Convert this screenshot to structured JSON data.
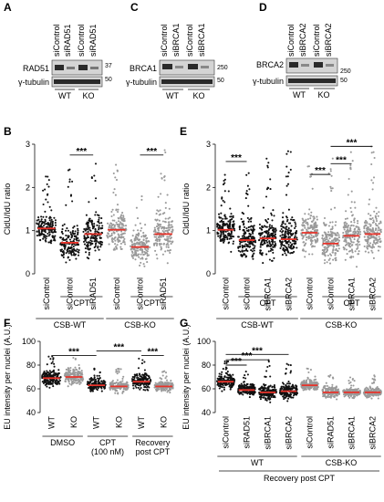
{
  "colors": {
    "dark_dot": "#111111",
    "light_dot": "#9a9a9a",
    "median": "#e8332a",
    "blot_bg": "#d4d4d4",
    "band": "#2a2a2a"
  },
  "panel_A": {
    "letter": "A",
    "lanes": [
      "siControl",
      "siRAD51",
      "siControl",
      "siRAD51"
    ],
    "protein": "RAD51",
    "loading": "γ-tubulin",
    "mw_top": "37",
    "mw_bottom": "50",
    "groups": [
      "WT",
      "KO"
    ]
  },
  "panel_C": {
    "letter": "C",
    "lanes": [
      "siControl",
      "siBRCA1",
      "siControl",
      "siBRCA1"
    ],
    "protein": "BRCA1",
    "loading": "γ-tubulin",
    "mw_top": "250",
    "mw_bottom": "50",
    "groups": [
      "WT",
      "KO"
    ]
  },
  "panel_D": {
    "letter": "D",
    "lanes": [
      "siControl",
      "siBRCA2",
      "siControl",
      "siBRCA2"
    ],
    "protein": "BRCA2",
    "loading": "γ-tubulin",
    "mw_top": "250",
    "mw_bottom": "50",
    "groups": [
      "WT",
      "KO"
    ]
  },
  "chart_data": [
    {
      "panel": "B",
      "type": "scatter",
      "ylabel": "CldU/IdU ratio",
      "ylim": [
        0,
        3
      ],
      "yticks": [
        "0",
        "1",
        "2",
        "3"
      ],
      "categories": [
        "siControl",
        "siControl",
        "siRAD51",
        "siControl",
        "siControl",
        "siRAD51"
      ],
      "medians": [
        1.05,
        0.72,
        0.92,
        1.02,
        0.62,
        0.92
      ],
      "spread_max": [
        2.3,
        2.5,
        2.8,
        2.6,
        2.2,
        3.0
      ],
      "dot_colors": [
        "dark",
        "dark",
        "dark",
        "light",
        "light",
        "light"
      ],
      "sig": [
        {
          "from": 1,
          "to": 2,
          "label": "***"
        },
        {
          "from": 4,
          "to": 5,
          "label": "***"
        }
      ],
      "treatment_labels": [
        {
          "text": "CPT",
          "span": [
            1,
            2
          ]
        },
        {
          "text": "CPT",
          "span": [
            4,
            5
          ]
        }
      ],
      "group_labels": [
        {
          "text": "CSB-WT",
          "span": [
            0,
            2
          ]
        },
        {
          "text": "CSB-KO",
          "span": [
            3,
            5
          ]
        }
      ]
    },
    {
      "panel": "E",
      "type": "scatter",
      "ylabel": "CldU/IdU ratio",
      "ylim": [
        0,
        3
      ],
      "yticks": [
        "0",
        "1",
        "2",
        "3"
      ],
      "categories": [
        "siControl",
        "siControl",
        "siBRCA1",
        "siBRCA2",
        "siControl",
        "siControl",
        "siBRCA1",
        "siBRCA2"
      ],
      "medians": [
        1.02,
        0.78,
        0.82,
        0.8,
        0.95,
        0.7,
        0.88,
        0.92
      ],
      "spread_max": [
        2.3,
        2.7,
        2.8,
        2.9,
        2.5,
        2.8,
        2.9,
        3.0
      ],
      "dot_colors": [
        "dark",
        "dark",
        "dark",
        "dark",
        "light",
        "light",
        "light",
        "light"
      ],
      "sig": [
        {
          "from": 0,
          "to": 1,
          "label": "***"
        },
        {
          "from": 4,
          "to": 5,
          "label": "***"
        },
        {
          "from": 5,
          "to": 6,
          "label": "***"
        },
        {
          "from": 5,
          "to": 7,
          "label": "***"
        }
      ],
      "treatment_labels": [
        {
          "text": "CPT",
          "span": [
            1,
            3
          ]
        },
        {
          "text": "CPT",
          "span": [
            5,
            7
          ]
        }
      ],
      "group_labels": [
        {
          "text": "CSB-WT",
          "span": [
            0,
            3
          ]
        },
        {
          "text": "CSB-KO",
          "span": [
            4,
            7
          ]
        }
      ]
    },
    {
      "panel": "F",
      "type": "scatter",
      "ylabel": "EU intensity per nuclei (A.U.)",
      "ylim": [
        40,
        100
      ],
      "yticks": [
        "40",
        "60",
        "80",
        "100"
      ],
      "categories": [
        "WT",
        "KO",
        "WT",
        "KO",
        "WT",
        "KO"
      ],
      "medians": [
        69,
        70,
        63,
        62,
        66,
        62
      ],
      "spread_min": [
        50,
        50,
        49,
        50,
        50,
        50
      ],
      "spread_max": [
        88,
        88,
        78,
        78,
        88,
        75
      ],
      "dot_colors": [
        "dark",
        "light",
        "dark",
        "light",
        "dark",
        "light"
      ],
      "sig": [
        {
          "from": 0,
          "to": 2,
          "label": "***"
        },
        {
          "from": 2,
          "to": 4,
          "label": "***"
        },
        {
          "from": 4,
          "to": 5,
          "label": "***"
        }
      ],
      "treatment_labels": [
        {
          "text": "DMSO",
          "span": [
            0,
            1
          ]
        },
        {
          "text": "CPT",
          "sub": "(100 nM)",
          "span": [
            2,
            3
          ]
        },
        {
          "text": "Recovery",
          "sub": "post CPT",
          "span": [
            4,
            5
          ]
        }
      ]
    },
    {
      "panel": "G",
      "type": "scatter",
      "ylabel": "EU intensity per nuclei (A.U.)",
      "ylim": [
        40,
        100
      ],
      "yticks": [
        "40",
        "60",
        "80",
        "100"
      ],
      "categories": [
        "siControl",
        "siRAD51",
        "siBRCA1",
        "siBRCA2",
        "siControl",
        "siRAD51",
        "siBRCA1",
        "siBRCA2"
      ],
      "medians": [
        66,
        59,
        57,
        58,
        63,
        57,
        57,
        57
      ],
      "spread_min": [
        50,
        48,
        48,
        48,
        48,
        48,
        48,
        48
      ],
      "spread_max": [
        88,
        78,
        86,
        84,
        78,
        75,
        70,
        72
      ],
      "dot_colors": [
        "dark",
        "dark",
        "dark",
        "dark",
        "light",
        "light",
        "light",
        "light"
      ],
      "sig": [
        {
          "from": 0,
          "to": 1,
          "label": "***"
        },
        {
          "from": 0,
          "to": 2,
          "label": "***"
        },
        {
          "from": 0,
          "to": 3,
          "label": "***"
        }
      ],
      "treatment_labels": [
        {
          "text": "WT",
          "span": [
            0,
            3
          ]
        },
        {
          "text": "CSB-KO",
          "span": [
            4,
            7
          ]
        }
      ],
      "footer": "Recovery post CPT"
    }
  ]
}
